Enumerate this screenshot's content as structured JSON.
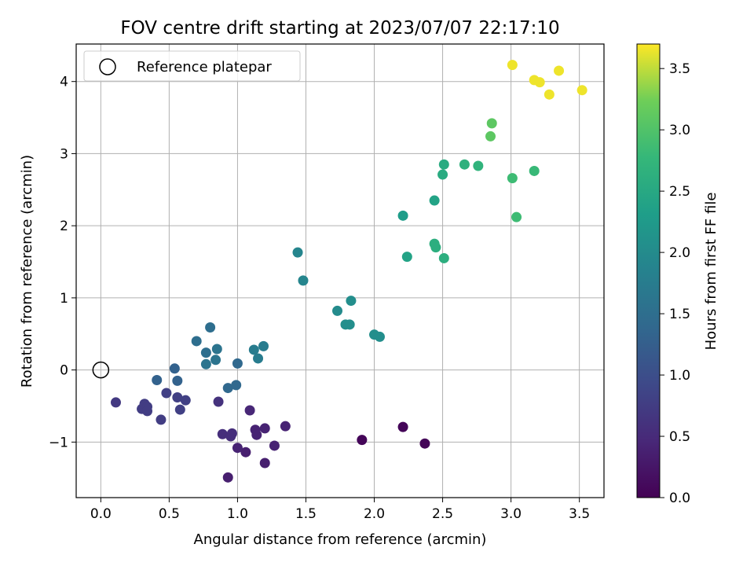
{
  "chart_data": {
    "type": "scatter",
    "title": "FOV centre drift starting at 2023/07/07 22:17:10",
    "xlabel": "Angular distance from reference (arcmin)",
    "ylabel": "Rotation from reference (arcmin)",
    "xlim": [
      -0.18,
      3.68
    ],
    "ylim": [
      -1.77,
      4.52
    ],
    "xticks": [
      0.0,
      0.5,
      1.0,
      1.5,
      2.0,
      2.5,
      3.0,
      3.5
    ],
    "xtick_labels": [
      "0.0",
      "0.5",
      "1.0",
      "1.5",
      "2.0",
      "2.5",
      "3.0",
      "3.5"
    ],
    "yticks": [
      -1,
      0,
      1,
      2,
      3,
      4
    ],
    "ytick_labels": [
      "−1",
      "0",
      "1",
      "2",
      "3",
      "4"
    ],
    "grid": true,
    "colormap": "viridis",
    "colorbar": {
      "label": "Hours from first FF file",
      "range": [
        0.0,
        3.7
      ],
      "ticks": [
        0.0,
        0.5,
        1.0,
        1.5,
        2.0,
        2.5,
        3.0,
        3.5
      ],
      "tick_labels": [
        "0.0",
        "0.5",
        "1.0",
        "1.5",
        "2.0",
        "2.5",
        "3.0",
        "3.5"
      ]
    },
    "legend": {
      "position": "top-left",
      "entries": [
        {
          "label": "Reference platepar",
          "marker": "open-circle"
        }
      ]
    },
    "reference_point": {
      "x": 0.0,
      "y": 0.0
    },
    "points": [
      {
        "x": 1.91,
        "y": -0.97,
        "c": 0.05
      },
      {
        "x": 2.21,
        "y": -0.79,
        "c": 0.05
      },
      {
        "x": 2.37,
        "y": -1.02,
        "c": 0.05
      },
      {
        "x": 0.93,
        "y": -1.49,
        "c": 0.35
      },
      {
        "x": 1.2,
        "y": -1.29,
        "c": 0.35
      },
      {
        "x": 1.06,
        "y": -1.14,
        "c": 0.35
      },
      {
        "x": 1.0,
        "y": -1.08,
        "c": 0.4
      },
      {
        "x": 1.27,
        "y": -1.05,
        "c": 0.4
      },
      {
        "x": 1.14,
        "y": -0.9,
        "c": 0.4
      },
      {
        "x": 1.13,
        "y": -0.83,
        "c": 0.4
      },
      {
        "x": 1.2,
        "y": -0.81,
        "c": 0.4
      },
      {
        "x": 1.35,
        "y": -0.78,
        "c": 0.4
      },
      {
        "x": 1.09,
        "y": -0.56,
        "c": 0.45
      },
      {
        "x": 0.89,
        "y": -0.89,
        "c": 0.55
      },
      {
        "x": 0.95,
        "y": -0.92,
        "c": 0.55
      },
      {
        "x": 0.96,
        "y": -0.88,
        "c": 0.55
      },
      {
        "x": 0.86,
        "y": -0.44,
        "c": 0.6
      },
      {
        "x": 0.11,
        "y": -0.45,
        "c": 0.7
      },
      {
        "x": 0.3,
        "y": -0.54,
        "c": 0.75
      },
      {
        "x": 0.32,
        "y": -0.47,
        "c": 0.75
      },
      {
        "x": 0.34,
        "y": -0.51,
        "c": 0.75
      },
      {
        "x": 0.34,
        "y": -0.57,
        "c": 0.75
      },
      {
        "x": 0.44,
        "y": -0.69,
        "c": 0.75
      },
      {
        "x": 0.48,
        "y": -0.32,
        "c": 0.8
      },
      {
        "x": 0.56,
        "y": -0.38,
        "c": 0.8
      },
      {
        "x": 0.58,
        "y": -0.55,
        "c": 0.8
      },
      {
        "x": 0.62,
        "y": -0.42,
        "c": 0.8
      },
      {
        "x": 0.41,
        "y": -0.14,
        "c": 1.3
      },
      {
        "x": 0.54,
        "y": 0.02,
        "c": 1.3
      },
      {
        "x": 0.56,
        "y": -0.15,
        "c": 1.3
      },
      {
        "x": 0.93,
        "y": -0.25,
        "c": 1.4
      },
      {
        "x": 0.99,
        "y": -0.21,
        "c": 1.4
      },
      {
        "x": 1.0,
        "y": 0.09,
        "c": 1.4
      },
      {
        "x": 0.7,
        "y": 0.4,
        "c": 1.5
      },
      {
        "x": 0.77,
        "y": 0.24,
        "c": 1.5
      },
      {
        "x": 0.8,
        "y": 0.59,
        "c": 1.5
      },
      {
        "x": 0.77,
        "y": 0.08,
        "c": 1.6
      },
      {
        "x": 0.84,
        "y": 0.14,
        "c": 1.6
      },
      {
        "x": 0.85,
        "y": 0.29,
        "c": 1.6
      },
      {
        "x": 1.12,
        "y": 0.28,
        "c": 1.75
      },
      {
        "x": 1.15,
        "y": 0.16,
        "c": 1.75
      },
      {
        "x": 1.19,
        "y": 0.33,
        "c": 1.75
      },
      {
        "x": 1.44,
        "y": 1.63,
        "c": 1.9
      },
      {
        "x": 1.48,
        "y": 1.24,
        "c": 1.9
      },
      {
        "x": 1.73,
        "y": 0.82,
        "c": 2.0
      },
      {
        "x": 1.79,
        "y": 0.63,
        "c": 2.05
      },
      {
        "x": 1.83,
        "y": 0.96,
        "c": 2.05
      },
      {
        "x": 1.82,
        "y": 0.63,
        "c": 2.05
      },
      {
        "x": 2.0,
        "y": 0.49,
        "c": 2.05
      },
      {
        "x": 2.04,
        "y": 0.46,
        "c": 2.05
      },
      {
        "x": 2.21,
        "y": 2.14,
        "c": 2.3
      },
      {
        "x": 2.24,
        "y": 1.57,
        "c": 2.4
      },
      {
        "x": 2.44,
        "y": 2.35,
        "c": 2.4
      },
      {
        "x": 2.44,
        "y": 1.75,
        "c": 2.6
      },
      {
        "x": 2.45,
        "y": 1.7,
        "c": 2.6
      },
      {
        "x": 2.51,
        "y": 1.55,
        "c": 2.6
      },
      {
        "x": 2.5,
        "y": 2.71,
        "c": 2.55
      },
      {
        "x": 2.51,
        "y": 2.85,
        "c": 2.55
      },
      {
        "x": 2.66,
        "y": 2.85,
        "c": 2.65
      },
      {
        "x": 2.76,
        "y": 2.83,
        "c": 2.7
      },
      {
        "x": 3.04,
        "y": 2.12,
        "c": 2.85
      },
      {
        "x": 3.01,
        "y": 2.66,
        "c": 2.85
      },
      {
        "x": 3.17,
        "y": 2.76,
        "c": 2.8
      },
      {
        "x": 2.85,
        "y": 3.24,
        "c": 3.1
      },
      {
        "x": 2.86,
        "y": 3.42,
        "c": 3.1
      },
      {
        "x": 3.01,
        "y": 4.23,
        "c": 3.65
      },
      {
        "x": 3.17,
        "y": 4.02,
        "c": 3.65
      },
      {
        "x": 3.21,
        "y": 3.99,
        "c": 3.65
      },
      {
        "x": 3.28,
        "y": 3.82,
        "c": 3.65
      },
      {
        "x": 3.35,
        "y": 4.15,
        "c": 3.65
      },
      {
        "x": 3.52,
        "y": 3.88,
        "c": 3.65
      }
    ]
  }
}
